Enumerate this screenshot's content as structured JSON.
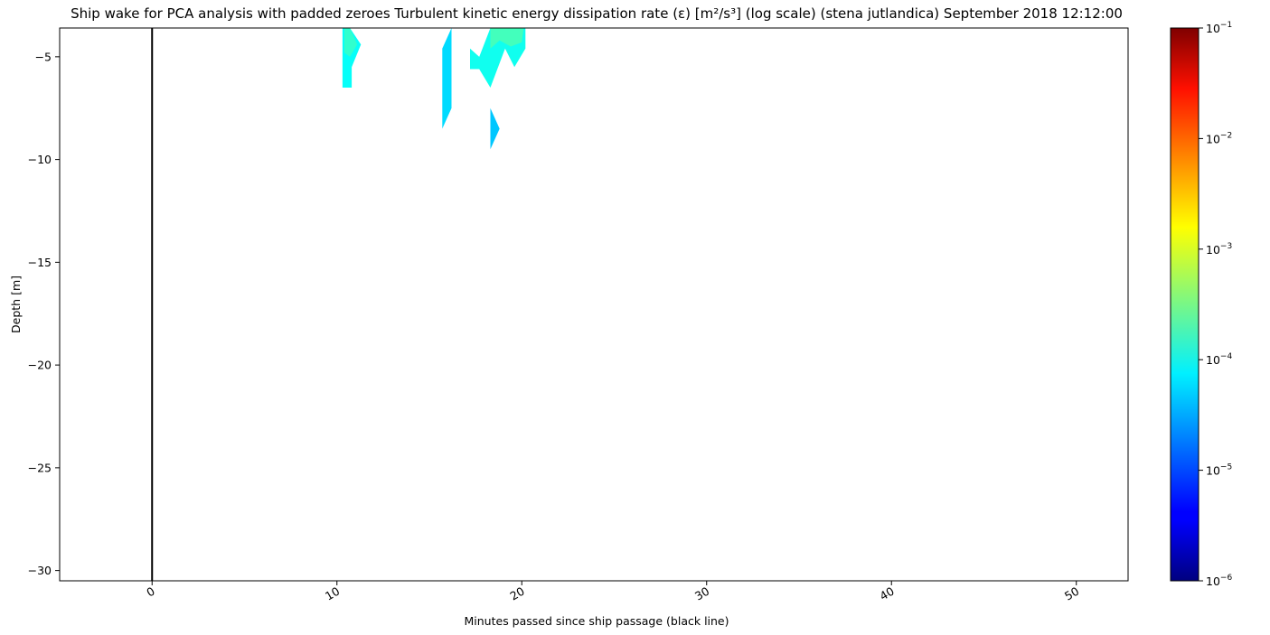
{
  "chart_data": {
    "type": "heatmap",
    "title": "Ship wake for PCA analysis with padded zeroes Turbulent kinetic energy dissipation rate (ε) [m²/s³] (log scale) (stena jutlandica) September 2018 12:12:00",
    "xlabel": "Minutes passed since ship passage (black line)",
    "ylabel": "Depth [m]",
    "xlim": [
      -5,
      52.8
    ],
    "ylim": [
      -30.5,
      -3.6
    ],
    "x_ticks": [
      0,
      10,
      20,
      30,
      40,
      50
    ],
    "y_ticks": [
      -5,
      -10,
      -15,
      -20,
      -25,
      -30
    ],
    "ship_passage_x": 0,
    "colormap": "jet",
    "color_scale": "log",
    "color_range": [
      1e-06,
      0.1
    ],
    "colorbar_ticks": [
      {
        "base": "10",
        "exp": "−6",
        "value": 1e-06
      },
      {
        "base": "10",
        "exp": "−5",
        "value": 1e-05
      },
      {
        "base": "10",
        "exp": "−4",
        "value": 0.0001
      },
      {
        "base": "10",
        "exp": "−3",
        "value": 0.001
      },
      {
        "base": "10",
        "exp": "−2",
        "value": 0.01
      },
      {
        "base": "10",
        "exp": "−1",
        "value": 0.1
      }
    ],
    "patches": [
      {
        "name": "patch-a",
        "value": 8e-05,
        "points": [
          [
            10.3,
            -3.6
          ],
          [
            10.7,
            -3.6
          ],
          [
            11.3,
            -4.4
          ],
          [
            10.8,
            -5.5
          ],
          [
            10.8,
            -6.5
          ],
          [
            10.3,
            -6.5
          ]
        ]
      },
      {
        "name": "patch-a-core",
        "value": 0.00013,
        "points": [
          [
            10.4,
            -3.6
          ],
          [
            10.7,
            -3.6
          ],
          [
            11.1,
            -4.4
          ],
          [
            10.7,
            -5.0
          ],
          [
            10.4,
            -4.8
          ]
        ]
      },
      {
        "name": "patch-b",
        "value": 5e-05,
        "points": [
          [
            15.7,
            -4.6
          ],
          [
            16.2,
            -3.6
          ],
          [
            16.2,
            -7.5
          ],
          [
            15.7,
            -8.5
          ]
        ]
      },
      {
        "name": "patch-c",
        "value": 9e-05,
        "points": [
          [
            18.3,
            -3.6
          ],
          [
            20.2,
            -3.6
          ],
          [
            20.2,
            -4.6
          ],
          [
            19.6,
            -5.5
          ],
          [
            19.1,
            -4.6
          ],
          [
            18.3,
            -6.5
          ],
          [
            17.7,
            -5.6
          ],
          [
            17.2,
            -5.6
          ],
          [
            17.2,
            -4.6
          ],
          [
            17.7,
            -5.0
          ]
        ]
      },
      {
        "name": "patch-c-core",
        "value": 0.00016,
        "points": [
          [
            18.3,
            -3.6
          ],
          [
            20.1,
            -3.6
          ],
          [
            20.0,
            -4.3
          ],
          [
            19.4,
            -4.5
          ],
          [
            18.8,
            -4.2
          ],
          [
            18.3,
            -4.6
          ]
        ]
      },
      {
        "name": "patch-d",
        "value": 4e-05,
        "points": [
          [
            18.3,
            -7.5
          ],
          [
            18.8,
            -8.5
          ],
          [
            18.3,
            -9.5
          ]
        ]
      }
    ]
  }
}
